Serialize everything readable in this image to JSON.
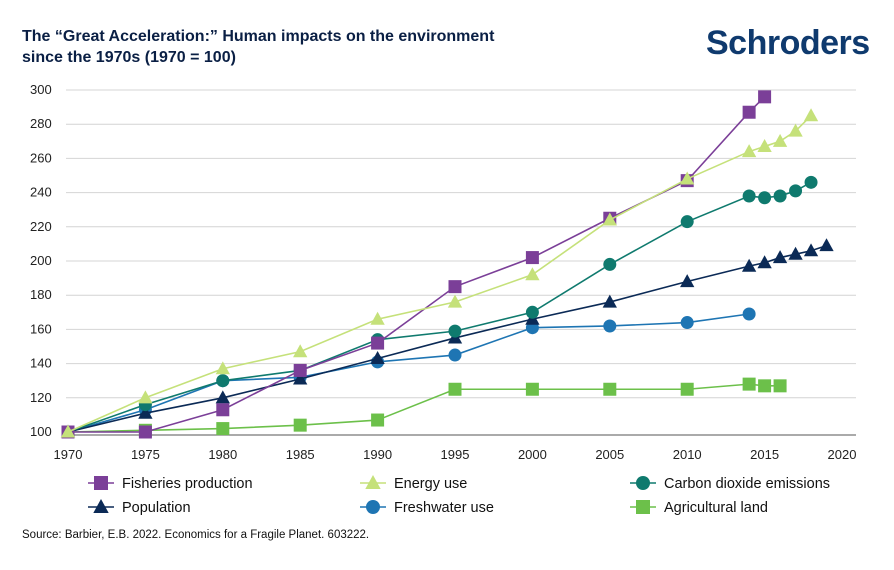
{
  "header": {
    "title_line1": "The “Great Acceleration:” Human impacts on the environment",
    "title_line2": "since the 1970s (1970 = 100)",
    "logo_text": "Schroders"
  },
  "source": "Source: Barbier, E.B. 2022. Economics for a Fragile Planet. 603222.",
  "chart_data": {
    "type": "line",
    "title": "The “Great Acceleration:” Human impacts on the environment since the 1970s (1970 = 100)",
    "xlim": [
      1970,
      2020
    ],
    "ylim": [
      100,
      300
    ],
    "xticks": [
      1970,
      1975,
      1980,
      1985,
      1990,
      1995,
      2000,
      2005,
      2010,
      2015,
      2020
    ],
    "yticks": [
      100,
      120,
      140,
      160,
      180,
      200,
      220,
      240,
      260,
      280,
      300
    ],
    "grid": "horizontal",
    "legend_position": "bottom",
    "series": [
      {
        "name": "Fisheries production",
        "color": "#7b3f98",
        "marker": "square",
        "x": [
          1970,
          1975,
          1980,
          1985,
          1990,
          1995,
          2000,
          2005,
          2010,
          2014,
          2015
        ],
        "y": [
          100,
          100,
          113,
          136,
          152,
          185,
          202,
          225,
          247,
          287,
          296
        ]
      },
      {
        "name": "Energy use",
        "color": "#c5e17a",
        "marker": "triangle",
        "x": [
          1970,
          1975,
          1980,
          1985,
          1990,
          1995,
          2000,
          2005,
          2010,
          2014,
          2015,
          2016,
          2017,
          2018
        ],
        "y": [
          100,
          120,
          137,
          147,
          166,
          176,
          192,
          224,
          248,
          264,
          267,
          270,
          276,
          285
        ]
      },
      {
        "name": "Carbon dioxide emissions",
        "color": "#0f7a6e",
        "marker": "circle",
        "x": [
          1970,
          1975,
          1980,
          1985,
          1990,
          1995,
          2000,
          2005,
          2010,
          2014,
          2015,
          2016,
          2017,
          2018
        ],
        "y": [
          100,
          116,
          130,
          136,
          154,
          159,
          170,
          198,
          223,
          238,
          237,
          238,
          241,
          246
        ]
      },
      {
        "name": "Population",
        "color": "#0b2a56",
        "marker": "triangle",
        "x": [
          1970,
          1975,
          1980,
          1985,
          1990,
          1995,
          2000,
          2005,
          2010,
          2014,
          2015,
          2016,
          2017,
          2018,
          2019
        ],
        "y": [
          100,
          111,
          120,
          131,
          143,
          155,
          166,
          176,
          188,
          197,
          199,
          202,
          204,
          206,
          209
        ]
      },
      {
        "name": "Freshwater use",
        "color": "#1e75b3",
        "marker": "circle",
        "x": [
          1970,
          1975,
          1980,
          1985,
          1990,
          1995,
          2000,
          2005,
          2010,
          2014
        ],
        "y": [
          100,
          113,
          130,
          132,
          141,
          145,
          161,
          162,
          164,
          169
        ]
      },
      {
        "name": "Agricultural land",
        "color": "#6cc04a",
        "marker": "square",
        "x": [
          1970,
          1975,
          1980,
          1985,
          1990,
          1995,
          2000,
          2005,
          2010,
          2014,
          2015,
          2016
        ],
        "y": [
          100,
          101,
          102,
          104,
          107,
          125,
          125,
          125,
          125,
          128,
          127,
          127
        ]
      }
    ]
  }
}
